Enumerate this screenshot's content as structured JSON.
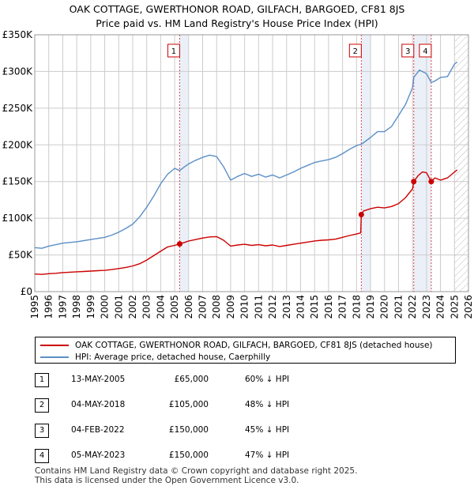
{
  "title": {
    "line1": "OAK COTTAGE, GWERTHONOR ROAD, GILFACH, BARGOED, CF81 8JS",
    "line2": "Price paid vs. HM Land Registry's House Price Index (HPI)"
  },
  "colors": {
    "property": "#cc0000",
    "hpi": "#5b8fc7",
    "shade": "#dde6f3",
    "grid": "#cccccc",
    "marker_line": "#dd4444"
  },
  "chart_data": {
    "type": "line",
    "xlim": [
      1995,
      2026
    ],
    "ylim": [
      0,
      350000
    ],
    "yticks": [
      {
        "value": 0,
        "label": "£0"
      },
      {
        "value": 50000,
        "label": "£50K"
      },
      {
        "value": 100000,
        "label": "£100K"
      },
      {
        "value": 150000,
        "label": "£150K"
      },
      {
        "value": 200000,
        "label": "£200K"
      },
      {
        "value": 250000,
        "label": "£250K"
      },
      {
        "value": 300000,
        "label": "£300K"
      },
      {
        "value": 350000,
        "label": "£350K"
      }
    ],
    "xticks": [
      "1995",
      "1996",
      "1997",
      "1998",
      "1999",
      "2000",
      "2001",
      "2002",
      "2003",
      "2004",
      "2005",
      "2006",
      "2007",
      "2008",
      "2009",
      "2010",
      "2011",
      "2012",
      "2013",
      "2014",
      "2015",
      "2016",
      "2017",
      "2018",
      "2019",
      "2020",
      "2021",
      "2022",
      "2023",
      "2024",
      "2025",
      "2026"
    ],
    "shaded_ranges": [
      [
        2005.36,
        2006.0
      ],
      [
        2018.34,
        2019.0
      ],
      [
        2022.09,
        2023.34
      ]
    ],
    "forecast_start": 2025.0,
    "series": [
      {
        "name": "OAK COTTAGE, GWERTHONOR ROAD, GILFACH, BARGOED, CF81 8JS (detached house)",
        "x": [
          1995.0,
          1995.5,
          1996.0,
          1996.5,
          1997.0,
          1997.5,
          1998.0,
          1998.5,
          1999.0,
          1999.5,
          2000.0,
          2000.5,
          2001.0,
          2001.5,
          2002.0,
          2002.5,
          2003.0,
          2003.5,
          2004.0,
          2004.5,
          2005.0,
          2005.36,
          2005.7,
          2006.0,
          2006.5,
          2007.0,
          2007.5,
          2008.0,
          2008.5,
          2009.0,
          2009.5,
          2010.0,
          2010.5,
          2011.0,
          2011.5,
          2012.0,
          2012.5,
          2013.0,
          2013.5,
          2014.0,
          2014.5,
          2015.0,
          2015.5,
          2016.0,
          2016.5,
          2017.0,
          2017.5,
          2018.0,
          2018.3,
          2018.34,
          2018.5,
          2019.0,
          2019.5,
          2020.0,
          2020.5,
          2021.0,
          2021.5,
          2022.0,
          2022.09,
          2022.4,
          2022.7,
          2023.0,
          2023.34,
          2023.6,
          2024.0,
          2024.5,
          2025.0,
          2025.2
        ],
        "values": [
          24000,
          23500,
          24500,
          25000,
          26000,
          26500,
          27000,
          27500,
          28000,
          28500,
          29000,
          30000,
          31500,
          33000,
          35000,
          38000,
          43000,
          49000,
          55000,
          61000,
          63000,
          65000,
          67000,
          69000,
          71000,
          73000,
          74500,
          75000,
          70000,
          62000,
          63500,
          64500,
          63000,
          64000,
          62500,
          63500,
          61500,
          63000,
          64500,
          66000,
          67500,
          69000,
          70000,
          70500,
          71500,
          74000,
          76500,
          78500,
          80000,
          105000,
          110000,
          113000,
          115000,
          114000,
          116000,
          120000,
          128000,
          140000,
          150000,
          158000,
          163000,
          162000,
          150000,
          155000,
          152000,
          155000,
          163000,
          166000
        ],
        "color": "#cc0000"
      },
      {
        "name": "HPI: Average price, detached house, Caerphilly",
        "x": [
          1995.0,
          1995.5,
          1996.0,
          1996.5,
          1997.0,
          1997.5,
          1998.0,
          1998.5,
          1999.0,
          1999.5,
          2000.0,
          2000.5,
          2001.0,
          2001.5,
          2002.0,
          2002.5,
          2003.0,
          2003.5,
          2004.0,
          2004.5,
          2005.0,
          2005.36,
          2005.7,
          2006.0,
          2006.5,
          2007.0,
          2007.5,
          2008.0,
          2008.5,
          2009.0,
          2009.5,
          2010.0,
          2010.5,
          2011.0,
          2011.5,
          2012.0,
          2012.5,
          2013.0,
          2013.5,
          2014.0,
          2014.5,
          2015.0,
          2015.5,
          2016.0,
          2016.5,
          2017.0,
          2017.5,
          2018.0,
          2018.34,
          2018.5,
          2019.0,
          2019.5,
          2020.0,
          2020.5,
          2021.0,
          2021.5,
          2022.0,
          2022.09,
          2022.5,
          2023.0,
          2023.34,
          2023.6,
          2024.0,
          2024.5,
          2025.0,
          2025.2
        ],
        "values": [
          60000,
          59000,
          62000,
          64000,
          66000,
          67000,
          68000,
          69500,
          71000,
          72500,
          74000,
          77000,
          81000,
          86000,
          92000,
          102000,
          115000,
          130000,
          147000,
          160000,
          168000,
          165000,
          170000,
          174000,
          179000,
          183000,
          186000,
          184000,
          170000,
          152000,
          157000,
          161000,
          157000,
          160000,
          156000,
          159000,
          155000,
          159000,
          163000,
          168000,
          172000,
          176000,
          178000,
          180000,
          183000,
          188000,
          194000,
          199000,
          201000,
          203000,
          210000,
          218000,
          218000,
          225000,
          240000,
          255000,
          278000,
          292000,
          302000,
          297000,
          285000,
          287000,
          292000,
          293000,
          310000,
          313000
        ],
        "color": "#5b8fc7"
      }
    ],
    "markers": [
      {
        "label": "1",
        "x": 2005.36,
        "y": 65000
      },
      {
        "label": "2",
        "x": 2018.34,
        "y": 105000
      },
      {
        "label": "3",
        "x": 2022.09,
        "y": 150000
      },
      {
        "label": "4",
        "x": 2023.34,
        "y": 150000
      }
    ]
  },
  "legend": {
    "property_label": "OAK COTTAGE, GWERTHONOR ROAD, GILFACH, BARGOED, CF81 8JS (detached house)",
    "hpi_label": "HPI: Average price, detached house, Caerphilly"
  },
  "sales": [
    {
      "num": "1",
      "date": "13-MAY-2005",
      "price": "£65,000",
      "hpi": "60% ↓ HPI"
    },
    {
      "num": "2",
      "date": "04-MAY-2018",
      "price": "£105,000",
      "hpi": "48% ↓ HPI"
    },
    {
      "num": "3",
      "date": "04-FEB-2022",
      "price": "£150,000",
      "hpi": "45% ↓ HPI"
    },
    {
      "num": "4",
      "date": "05-MAY-2023",
      "price": "£150,000",
      "hpi": "47% ↓ HPI"
    }
  ],
  "footer": {
    "line1": "Contains HM Land Registry data © Crown copyright and database right 2025.",
    "line2": "This data is licensed under the Open Government Licence v3.0."
  }
}
